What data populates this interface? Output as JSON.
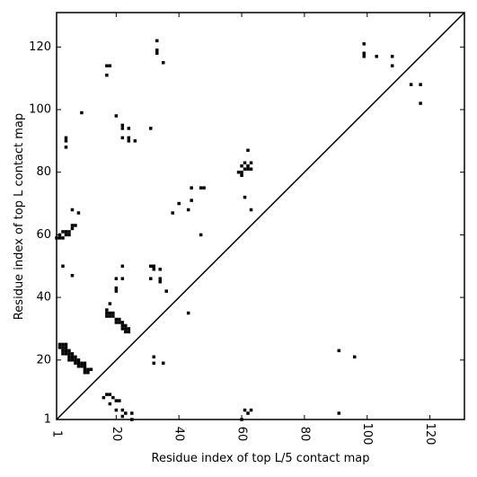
{
  "chart_data": {
    "type": "scatter",
    "title": "",
    "xlabel": "Residue index of top L/5 contact map",
    "ylabel": "Residue index of top L contact map",
    "xlim": [
      1,
      131
    ],
    "ylim": [
      1,
      131
    ],
    "xticks": [
      {
        "value": 1,
        "label": "1"
      },
      {
        "value": 20,
        "label": "20"
      },
      {
        "value": 40,
        "label": "40"
      },
      {
        "value": 60,
        "label": "60"
      },
      {
        "value": 80,
        "label": "80"
      },
      {
        "value": 100,
        "label": "100"
      },
      {
        "value": 120,
        "label": "120"
      }
    ],
    "yticks": [
      {
        "value": 1,
        "label": "1"
      },
      {
        "value": 20,
        "label": "20"
      },
      {
        "value": 40,
        "label": "40"
      },
      {
        "value": 60,
        "label": "60"
      },
      {
        "value": 80,
        "label": "80"
      },
      {
        "value": 100,
        "label": "100"
      },
      {
        "value": 120,
        "label": "120"
      }
    ],
    "diagonal": true,
    "grid": false,
    "marker_color": "#000000",
    "points": [
      [
        1,
        59
      ],
      [
        2,
        59
      ],
      [
        3,
        59
      ],
      [
        2,
        60
      ],
      [
        3,
        61
      ],
      [
        4,
        61
      ],
      [
        5,
        61
      ],
      [
        4,
        60
      ],
      [
        5,
        60
      ],
      [
        6,
        62
      ],
      [
        6,
        63
      ],
      [
        7,
        63
      ],
      [
        8,
        67
      ],
      [
        6,
        68
      ],
      [
        3,
        50
      ],
      [
        6,
        47
      ],
      [
        4,
        88
      ],
      [
        4,
        90
      ],
      [
        4,
        91
      ],
      [
        9,
        99
      ],
      [
        17,
        111
      ],
      [
        17,
        114
      ],
      [
        18,
        114
      ],
      [
        20,
        98
      ],
      [
        22,
        94
      ],
      [
        22,
        95
      ],
      [
        22,
        91
      ],
      [
        24,
        91
      ],
      [
        24,
        90
      ],
      [
        26,
        90
      ],
      [
        24,
        94
      ],
      [
        31,
        94
      ],
      [
        33,
        122
      ],
      [
        33,
        119
      ],
      [
        33,
        118
      ],
      [
        35,
        115
      ],
      [
        2,
        24
      ],
      [
        3,
        24
      ],
      [
        4,
        24
      ],
      [
        2,
        25
      ],
      [
        3,
        25
      ],
      [
        4,
        25
      ],
      [
        3,
        23
      ],
      [
        4,
        23
      ],
      [
        5,
        23
      ],
      [
        3,
        22
      ],
      [
        4,
        22
      ],
      [
        5,
        22
      ],
      [
        6,
        22
      ],
      [
        5,
        21
      ],
      [
        6,
        21
      ],
      [
        7,
        21
      ],
      [
        5,
        20
      ],
      [
        6,
        20
      ],
      [
        7,
        20
      ],
      [
        8,
        20
      ],
      [
        7,
        19
      ],
      [
        8,
        19
      ],
      [
        9,
        19
      ],
      [
        10,
        19
      ],
      [
        8,
        18
      ],
      [
        9,
        18
      ],
      [
        10,
        18
      ],
      [
        10,
        17
      ],
      [
        11,
        17
      ],
      [
        12,
        17
      ],
      [
        10,
        16
      ],
      [
        11,
        16
      ],
      [
        17,
        36
      ],
      [
        17,
        35
      ],
      [
        18,
        35
      ],
      [
        19,
        35
      ],
      [
        17,
        34
      ],
      [
        18,
        34
      ],
      [
        19,
        34
      ],
      [
        20,
        33
      ],
      [
        21,
        33
      ],
      [
        20,
        32
      ],
      [
        21,
        32
      ],
      [
        22,
        32
      ],
      [
        22,
        31
      ],
      [
        23,
        31
      ],
      [
        22,
        30
      ],
      [
        23,
        30
      ],
      [
        24,
        30
      ],
      [
        23,
        29
      ],
      [
        24,
        29
      ],
      [
        18,
        38
      ],
      [
        20,
        42
      ],
      [
        20,
        43
      ],
      [
        20,
        46
      ],
      [
        22,
        46
      ],
      [
        22,
        50
      ],
      [
        31,
        50
      ],
      [
        32,
        50
      ],
      [
        32,
        49
      ],
      [
        34,
        49
      ],
      [
        34,
        46
      ],
      [
        31,
        46
      ],
      [
        34,
        45
      ],
      [
        36,
        42
      ],
      [
        32,
        21
      ],
      [
        32,
        19
      ],
      [
        35,
        19
      ],
      [
        43,
        35
      ],
      [
        17,
        9
      ],
      [
        18,
        9
      ],
      [
        19,
        8
      ],
      [
        16,
        8
      ],
      [
        18,
        6
      ],
      [
        20,
        7
      ],
      [
        21,
        7
      ],
      [
        20,
        4
      ],
      [
        22,
        4
      ],
      [
        22,
        2
      ],
      [
        23,
        3
      ],
      [
        25,
        3
      ],
      [
        25,
        1
      ],
      [
        38,
        67
      ],
      [
        40,
        70
      ],
      [
        43,
        68
      ],
      [
        44,
        71
      ],
      [
        44,
        75
      ],
      [
        47,
        75
      ],
      [
        48,
        75
      ],
      [
        47,
        60
      ],
      [
        59,
        80
      ],
      [
        60,
        80
      ],
      [
        60,
        79
      ],
      [
        61,
        81
      ],
      [
        60,
        82
      ],
      [
        61,
        83
      ],
      [
        62,
        82
      ],
      [
        62,
        81
      ],
      [
        63,
        81
      ],
      [
        63,
        83
      ],
      [
        62,
        87
      ],
      [
        61,
        72
      ],
      [
        63,
        68
      ],
      [
        60,
        1
      ],
      [
        61,
        4
      ],
      [
        62,
        3
      ],
      [
        63,
        4
      ],
      [
        91,
        23
      ],
      [
        96,
        21
      ],
      [
        91,
        3
      ],
      [
        99,
        121
      ],
      [
        99,
        118
      ],
      [
        99,
        117
      ],
      [
        103,
        117
      ],
      [
        108,
        117
      ],
      [
        108,
        114
      ],
      [
        114,
        108
      ],
      [
        117,
        108
      ],
      [
        117,
        102
      ]
    ]
  }
}
